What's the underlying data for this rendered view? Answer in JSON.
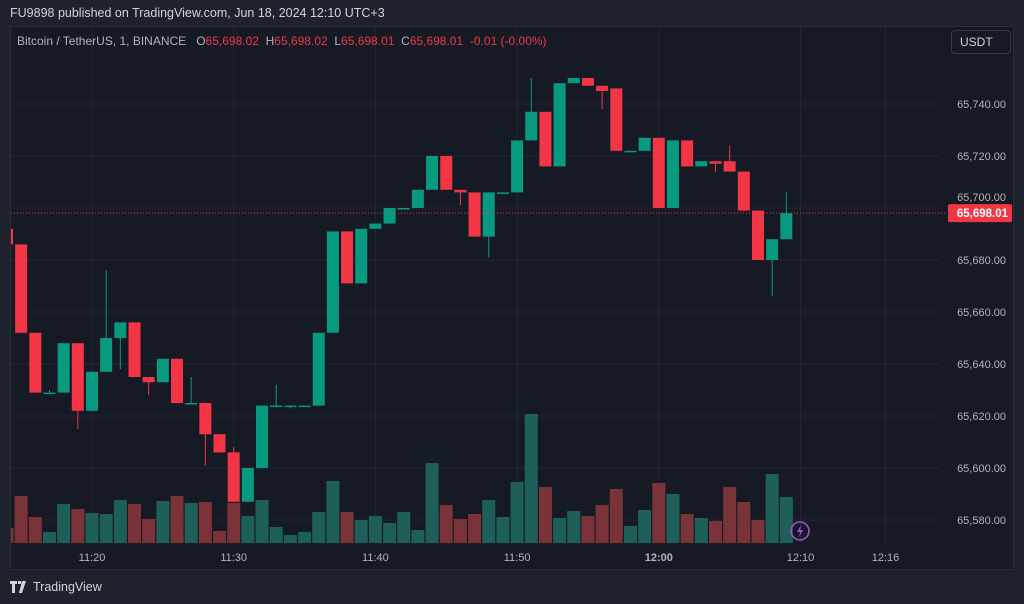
{
  "header": {
    "published": "FU9898 published on TradingView.com, Jun 18, 2024 12:10 UTC+3"
  },
  "legend": {
    "symbol": "Bitcoin / TetherUS, 1, BINANCE",
    "o_label": "O",
    "o": "65,698.02",
    "h_label": "H",
    "h": "65,698.02",
    "l_label": "L",
    "l": "65,698.01",
    "c_label": "C",
    "c": "65,698.01",
    "change": "-0.01 (-0.00%)"
  },
  "currency_button": "USDT",
  "last_price_label": "65,698.01",
  "brand": "TradingView",
  "colors": {
    "up": "#089981",
    "down": "#f23645",
    "vol_up": "#1f5f59",
    "vol_down": "#7a3338",
    "bg": "#161a25",
    "grid": "#232733"
  },
  "chart_data": {
    "type": "candlestick",
    "title": "Bitcoin / TetherUS, 1, BINANCE",
    "interval_minutes": 1,
    "start_time": "11:14",
    "ylim": [
      65570,
      65770
    ],
    "y_ticks": [
      "65,580.00",
      "65,600.00",
      "65,620.00",
      "65,640.00",
      "65,660.00",
      "65,680.00",
      "65,700.00",
      "65,720.00",
      "65,740.00"
    ],
    "y_tick_values": [
      65580,
      65600,
      65620,
      65640,
      65660,
      65680,
      65700,
      65720,
      65740
    ],
    "x_ticks": [
      {
        "label": "11:20",
        "minute": 20,
        "bold": false
      },
      {
        "label": "11:30",
        "minute": 30,
        "bold": false
      },
      {
        "label": "11:40",
        "minute": 40,
        "bold": false
      },
      {
        "label": "11:50",
        "minute": 50,
        "bold": false
      },
      {
        "label": "12:00",
        "minute": 60,
        "bold": true
      },
      {
        "label": "12:10",
        "minute": 70,
        "bold": false
      },
      {
        "label": "12:16",
        "minute": 76,
        "bold": false
      }
    ],
    "last_price": 65698.01,
    "candles_ohlcv": [
      [
        65692,
        65693,
        65686,
        65686,
        15
      ],
      [
        65686,
        65686,
        65652,
        65652,
        47
      ],
      [
        65652,
        65652,
        65629,
        65629,
        26
      ],
      [
        65629,
        65630,
        65629,
        65629,
        11
      ],
      [
        65629,
        65648,
        65629,
        65648,
        39
      ],
      [
        65648,
        65648,
        65615,
        65622,
        34
      ],
      [
        65622,
        65637,
        65622,
        65637,
        30
      ],
      [
        65637,
        65676,
        65637,
        65650,
        29
      ],
      [
        65650,
        65656,
        65638,
        65656,
        43
      ],
      [
        65656,
        65656,
        65635,
        65635,
        39
      ],
      [
        65635,
        65635,
        65628,
        65633,
        24
      ],
      [
        65633,
        65642,
        65633,
        65642,
        42
      ],
      [
        65642,
        65642,
        65625,
        65625,
        47
      ],
      [
        65625,
        65635,
        65625,
        65625,
        40
      ],
      [
        65625,
        65625,
        65601,
        65613,
        41
      ],
      [
        65613,
        65613,
        65606,
        65606,
        12
      ],
      [
        65606,
        65608,
        65587,
        65587,
        40
      ],
      [
        65587,
        65600,
        65587,
        65600,
        27
      ],
      [
        65600,
        65624,
        65600,
        65624,
        43
      ],
      [
        65624,
        65632,
        65624,
        65624,
        16
      ],
      [
        65624,
        65624,
        65623,
        65624,
        8
      ],
      [
        65624,
        65624,
        65624,
        65624,
        11
      ],
      [
        65624,
        65652,
        65624,
        65652,
        31
      ],
      [
        65652,
        65691,
        65652,
        65691,
        62
      ],
      [
        65691,
        65691,
        65671,
        65671,
        31
      ],
      [
        65671,
        65692,
        65671,
        65692,
        23
      ],
      [
        65692,
        65694,
        65692,
        65694,
        27
      ],
      [
        65694,
        65700,
        65694,
        65700,
        20
      ],
      [
        65700,
        65700,
        65700,
        65700,
        31
      ],
      [
        65700,
        65707,
        65700,
        65707,
        13
      ],
      [
        65707,
        65720,
        65707,
        65720,
        80
      ],
      [
        65720,
        65720,
        65707,
        65707,
        38
      ],
      [
        65707,
        65707,
        65701,
        65706,
        24
      ],
      [
        65706,
        65706,
        65689,
        65689,
        29
      ],
      [
        65689,
        65706,
        65681,
        65706,
        43
      ],
      [
        65706,
        65706,
        65706,
        65706,
        26
      ],
      [
        65706,
        65726,
        65706,
        65726,
        61
      ],
      [
        65726,
        65750,
        65726,
        65737,
        129
      ],
      [
        65737,
        65737,
        65716,
        65716,
        56
      ],
      [
        65716,
        65748,
        65716,
        65748,
        25
      ],
      [
        65748,
        65750,
        65748,
        65750,
        32
      ],
      [
        65750,
        65750,
        65747,
        65747,
        27
      ],
      [
        65747,
        65747,
        65738,
        65745,
        38
      ],
      [
        65746,
        65746,
        65722,
        65722,
        54
      ],
      [
        65722,
        65722,
        65722,
        65722,
        17
      ],
      [
        65722,
        65727,
        65722,
        65727,
        33
      ],
      [
        65727,
        65727,
        65700,
        65700,
        60
      ],
      [
        65700,
        65726,
        65700,
        65726,
        49
      ],
      [
        65726,
        65726,
        65716,
        65716,
        29
      ],
      [
        65716,
        65718,
        65716,
        65718,
        25
      ],
      [
        65718,
        65718,
        65714,
        65717,
        22
      ],
      [
        65718,
        65724,
        65714,
        65714,
        56
      ],
      [
        65714,
        65714,
        65699,
        65699,
        41
      ],
      [
        65699,
        65699,
        65680,
        65680,
        23
      ],
      [
        65680,
        65688,
        65666,
        65688,
        69
      ],
      [
        65688,
        65706,
        65688,
        65698.01,
        46
      ]
    ]
  }
}
